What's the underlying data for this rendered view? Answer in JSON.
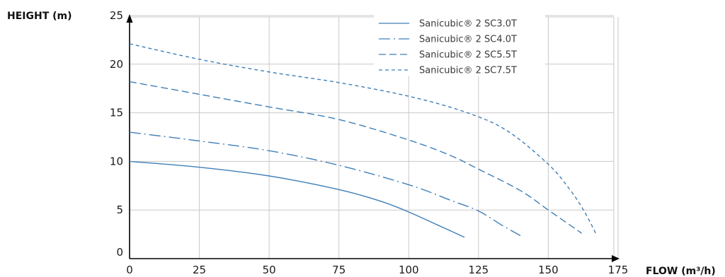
{
  "chart_data": {
    "type": "line",
    "xlabel": "FLOW (m³/h)",
    "ylabel": "HEIGHT (m)",
    "xlim": [
      0,
      175
    ],
    "ylim": [
      0,
      25
    ],
    "x_ticks": [
      0,
      25,
      50,
      75,
      100,
      125,
      150,
      175
    ],
    "y_ticks": [
      0,
      5,
      10,
      15,
      20,
      25
    ],
    "grid": true,
    "legend_position": "top-center",
    "line_color": "#3f7fb8",
    "series": [
      {
        "name": "Sanicubic® 2 SC3.0T",
        "dash": "solid",
        "points": [
          [
            0,
            10
          ],
          [
            25,
            9.4
          ],
          [
            50,
            8.5
          ],
          [
            75,
            7.1
          ],
          [
            90,
            5.9
          ],
          [
            100,
            4.8
          ],
          [
            110,
            3.5
          ],
          [
            120,
            2.2
          ]
        ]
      },
      {
        "name": "Sanicubic® 2 SC4.0T",
        "dash": "dash-dot",
        "points": [
          [
            0,
            13
          ],
          [
            25,
            12.1
          ],
          [
            50,
            11.1
          ],
          [
            75,
            9.6
          ],
          [
            100,
            7.6
          ],
          [
            115,
            6.0
          ],
          [
            125,
            4.9
          ],
          [
            133,
            3.5
          ],
          [
            141,
            2.2
          ]
        ]
      },
      {
        "name": "Sanicubic® 2 SC5.5T",
        "dash": "long-dash",
        "points": [
          [
            0,
            18.2
          ],
          [
            25,
            16.9
          ],
          [
            50,
            15.6
          ],
          [
            75,
            14.3
          ],
          [
            100,
            12.2
          ],
          [
            115,
            10.6
          ],
          [
            125,
            9.2
          ],
          [
            140,
            7.0
          ],
          [
            150,
            5.0
          ],
          [
            162,
            2.6
          ]
        ]
      },
      {
        "name": "Sanicubic® 2 SC7.5T",
        "dash": "short-dash",
        "points": [
          [
            0,
            22.1
          ],
          [
            25,
            20.5
          ],
          [
            50,
            19.2
          ],
          [
            75,
            18.1
          ],
          [
            100,
            16.7
          ],
          [
            120,
            15.1
          ],
          [
            135,
            13.2
          ],
          [
            150,
            9.7
          ],
          [
            158,
            7.0
          ],
          [
            163,
            4.8
          ],
          [
            167,
            2.6
          ]
        ]
      }
    ]
  }
}
